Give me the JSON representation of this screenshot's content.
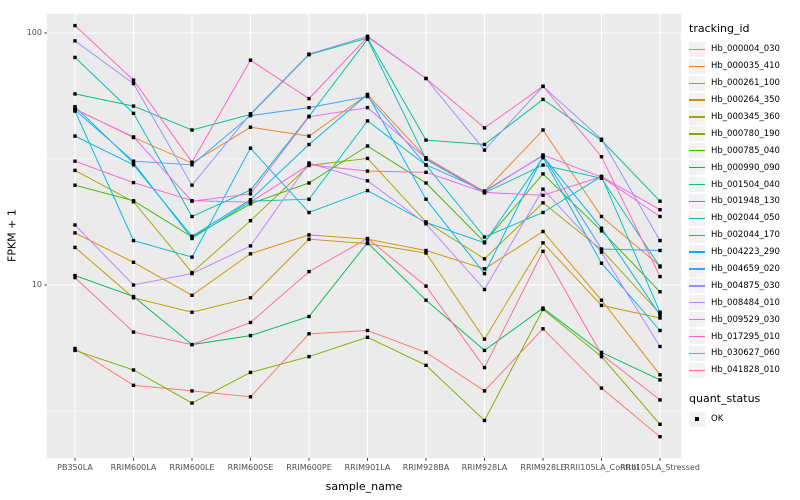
{
  "theme": {
    "panel_bg": "#EBEBEB",
    "grid_color": "#FFFFFF",
    "axis_text_color": "#4D4D4D",
    "title_color": "#000000",
    "marker_color": "#000000",
    "legend_key_bg": "#F2F2F2"
  },
  "axes": {
    "x": {
      "title": "sample_name"
    },
    "y": {
      "title": "FPKM + 1",
      "scale": "log10",
      "major_ticks": [
        {
          "label": "100",
          "value": 100
        },
        {
          "label": "10",
          "value": 10
        }
      ],
      "minor_breaks": [
        31.62,
        3.162
      ]
    }
  },
  "legend": {
    "tracking": {
      "title": "tracking_id"
    },
    "quant": {
      "title": "quant_status",
      "items": [
        {
          "label": "OK",
          "marker": "black-square"
        }
      ]
    }
  },
  "chart_data": {
    "type": "line",
    "title": "",
    "xlabel": "sample_name",
    "ylabel": "FPKM + 1",
    "y_scale": "log10",
    "y_ticks": [
      10,
      100
    ],
    "y_minor_ticks": [
      3.162,
      31.62
    ],
    "ylim_approx": [
      2.1,
      119
    ],
    "legend_position": "right",
    "marker": "square",
    "marker_color": "#000000",
    "grid": true,
    "categories": [
      "PB350LA",
      "RRIM600LA",
      "RRIM600LE",
      "RRIM600SE",
      "RRIM600PE",
      "RRIM901LA",
      "RRIM928BA",
      "RRIM928LA",
      "RRIM928LE",
      "RRII105LA_Control",
      "RRII105LA_Stressed"
    ],
    "series": [
      {
        "name": "Hb_000004_030",
        "color": "#F8766D",
        "values": [
          5.6,
          4.0,
          3.8,
          3.6,
          6.4,
          6.6,
          5.4,
          3.8,
          6.7,
          3.9,
          2.5
        ]
      },
      {
        "name": "Hb_000035_410",
        "color": "#EA8331",
        "values": [
          50,
          38.5,
          30.5,
          42.3,
          39,
          57,
          32,
          23.5,
          41.2,
          18.7,
          11.9
        ]
      },
      {
        "name": "Hb_000261_100",
        "color": "#D89000",
        "values": [
          16.1,
          12.3,
          9.1,
          13.3,
          15.8,
          15.2,
          13.7,
          11.6,
          16.3,
          8.7,
          4.4
        ]
      },
      {
        "name": "Hb_000264_350",
        "color": "#C09B00",
        "values": [
          14.1,
          8.9,
          7.8,
          8.9,
          15.2,
          14.6,
          13.4,
          6.1,
          14.7,
          8.3,
          7.4
        ]
      },
      {
        "name": "Hb_000345_360",
        "color": "#A3A500",
        "values": [
          28.5,
          21.4,
          11.2,
          18.0,
          29.8,
          31.8,
          17.8,
          12.7,
          21.2,
          13.8,
          7.7
        ]
      },
      {
        "name": "Hb_000780_190",
        "color": "#7CAE00",
        "values": [
          5.5,
          4.6,
          3.4,
          4.5,
          5.2,
          6.2,
          4.8,
          2.9,
          8.0,
          5.2,
          2.8
        ]
      },
      {
        "name": "Hb_000785_040",
        "color": "#39B600",
        "values": [
          24.9,
          21.6,
          15.5,
          21.0,
          25.4,
          35.6,
          25.4,
          14.8,
          27.6,
          16.4,
          9.4
        ]
      },
      {
        "name": "Hb_000990_090",
        "color": "#00BB4E",
        "values": [
          10.9,
          9.0,
          5.8,
          6.3,
          7.5,
          14.7,
          8.7,
          5.5,
          8.1,
          5.4,
          4.2
        ]
      },
      {
        "name": "Hb_001504_040",
        "color": "#00C08B",
        "values": [
          57.3,
          51.3,
          41.2,
          47.5,
          82,
          95.5,
          37.6,
          36.1,
          54.5,
          37.5,
          21.5
        ]
      },
      {
        "name": "Hb_001948_130",
        "color": "#00C1A9",
        "values": [
          80,
          48,
          18.7,
          23.8,
          46.7,
          94.5,
          31.5,
          23.2,
          29.9,
          26.5,
          11.8
        ]
      },
      {
        "name": "Hb_002044_050",
        "color": "#00BFC4",
        "values": [
          51,
          30.5,
          15.3,
          21.5,
          21.9,
          44.8,
          29.9,
          15.5,
          19.4,
          27.0,
          7.8
        ]
      },
      {
        "name": "Hb_002044_170",
        "color": "#00BADE",
        "values": [
          49,
          15.0,
          12.9,
          34.9,
          19.4,
          23.7,
          17.7,
          14.7,
          32.0,
          12.2,
          6.6
        ]
      },
      {
        "name": "Hb_004223_290",
        "color": "#00B4F0",
        "values": [
          39,
          30.0,
          15.6,
          21.8,
          36.1,
          57,
          21.9,
          11.1,
          32.4,
          16.8,
          7.6
        ]
      },
      {
        "name": "Hb_004659_020",
        "color": "#3DA1FF",
        "values": [
          49.5,
          31.0,
          30.0,
          47.0,
          50.6,
          56,
          30.0,
          23.6,
          32.6,
          13.9,
          13.7
        ]
      },
      {
        "name": "Hb_004875_030",
        "color": "#9590FF",
        "values": [
          93,
          63,
          24.9,
          47.8,
          82.5,
          97,
          66,
          34.3,
          61.4,
          37.9,
          15.0
        ]
      },
      {
        "name": "Hb_008484_010",
        "color": "#B983FF",
        "values": [
          17.3,
          10.0,
          11.1,
          14.3,
          30.5,
          25.9,
          17.5,
          9.6,
          24.0,
          13.5,
          5.7
        ]
      },
      {
        "name": "Hb_009529_030",
        "color": "#E76BF3",
        "values": [
          49.8,
          38.7,
          21.5,
          23.0,
          46.5,
          50.6,
          31.8,
          23.4,
          32.8,
          26.8,
          18.7
        ]
      },
      {
        "name": "Hb_017295_010",
        "color": "#F962DD",
        "values": [
          31,
          25.5,
          21.6,
          21.3,
          30.0,
          28.3,
          28.0,
          23.3,
          22.7,
          26.9,
          19.9
        ]
      },
      {
        "name": "Hb_030627_060",
        "color": "#FF62BC",
        "values": [
          107,
          65,
          30.7,
          78,
          54.9,
          96.4,
          66,
          42,
          61.5,
          32.3,
          10.8
        ]
      },
      {
        "name": "Hb_041828_010",
        "color": "#FF6A98",
        "values": [
          10.7,
          6.5,
          5.8,
          7.1,
          11.3,
          15.3,
          9.9,
          4.7,
          13.6,
          5.3,
          3.5
        ]
      }
    ]
  }
}
